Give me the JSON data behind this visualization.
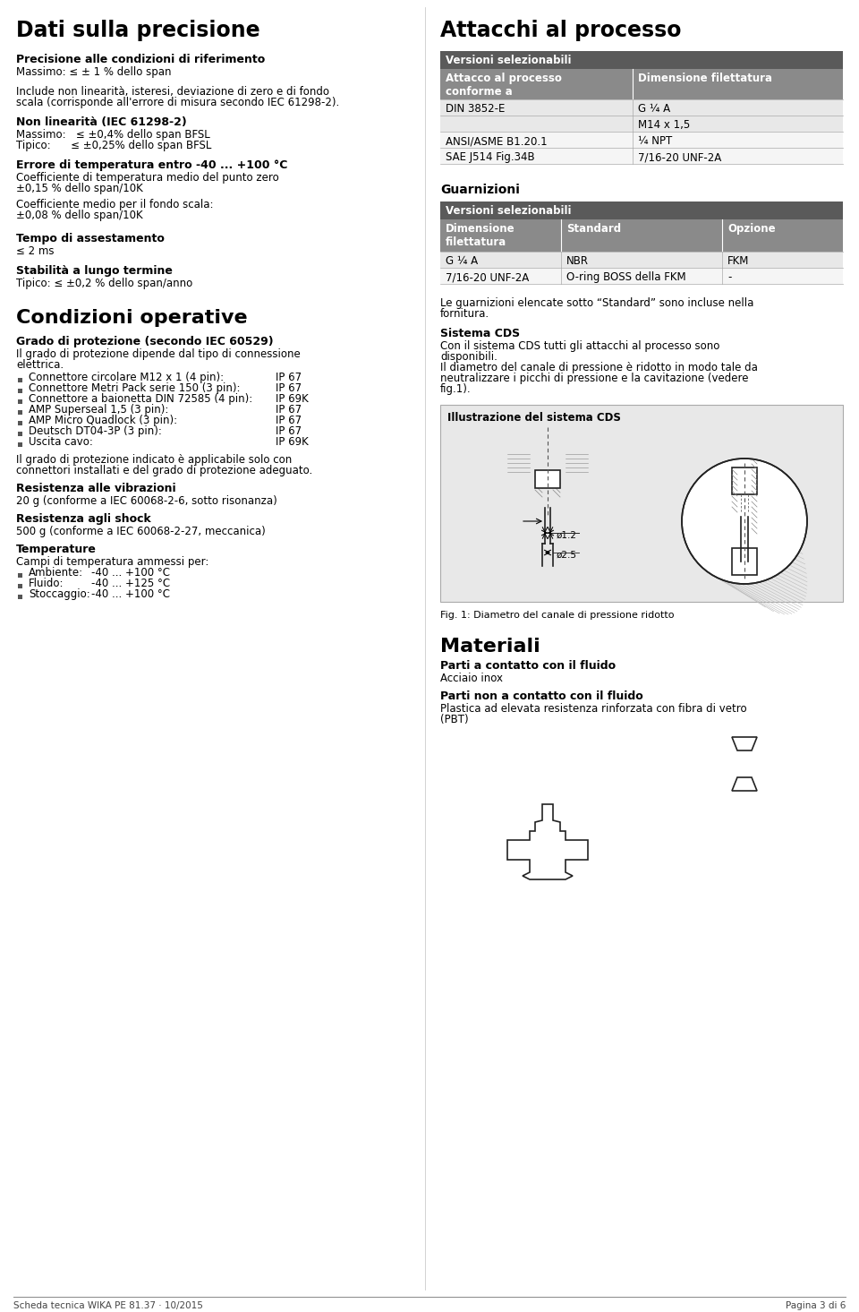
{
  "bg_color": "#ffffff",
  "header_bg": "#5a5a5a",
  "subheader_bg": "#8a8a8a",
  "row_alt_bg": "#e8e8e8",
  "row_bg": "#f5f5f5",
  "border_color": "#aaaaaa",
  "illus_bg": "#e8e8e8",
  "footer_left": "Scheda tecnica WIKA PE 81.37 · 10/2015",
  "footer_right": "Pagina 3 di 6",
  "illustration_title": "Illustrazione del sistema CDS",
  "fig_caption": "Fig. 1: Diametro del canale di pressione ridotto"
}
